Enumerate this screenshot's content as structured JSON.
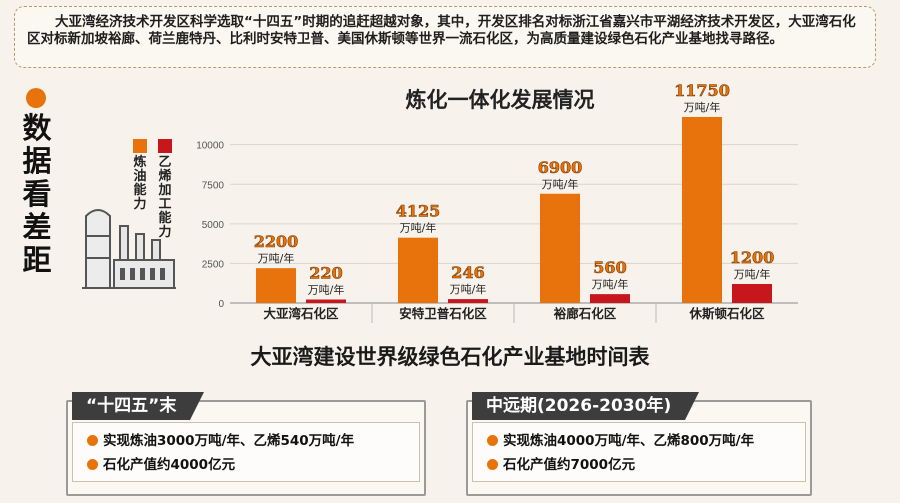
{
  "intro": {
    "text": "大亚湾经济技术开发区科学选取“十四五”时期的追赶超越对象，其中，开发区排名对标浙江省嘉兴市平湖经济技术开发区，大亚湾石化区对标新加坡裕廊、荷兰鹿特丹、比利时安特卫普、美国休斯顿等世界一流石化区，为高质量建设绿色石化产业基地找寻路径。"
  },
  "sidebar": {
    "title": "数据看差距",
    "legend": [
      {
        "label": "炼油能力",
        "color": "#e8730c"
      },
      {
        "label": "乙烯加工能力",
        "color": "#c8161d"
      }
    ]
  },
  "chart_data": {
    "type": "bar",
    "title": "炼化一体化发展情况",
    "categories": [
      "大亚湾石化区",
      "安特卫普石化区",
      "裕廊石化区",
      "休斯顿石化区"
    ],
    "series": [
      {
        "name": "炼油能力",
        "color": "#e8730c",
        "values": [
          2200,
          4125,
          6900,
          11750
        ],
        "labels": [
          "2200",
          "4125",
          "6900",
          "11750"
        ]
      },
      {
        "name": "乙烯加工能力",
        "color": "#c8161d",
        "values": [
          220,
          246,
          560,
          1200
        ],
        "labels": [
          "220",
          "246",
          "560",
          "1200"
        ]
      }
    ],
    "unit_label": "万吨/年",
    "yticks": [
      "0",
      "2500",
      "5000",
      "7500",
      "10000"
    ],
    "ylim": [
      0,
      12000
    ],
    "grid": true
  },
  "timeline": {
    "title": "大亚湾建设世界级绿色石化产业基地时间表",
    "panels": [
      {
        "tab": "“十四五”末",
        "items": [
          "实现炼油3000万吨/年、乙烯540万吨/年",
          "石化产值约4000亿元"
        ]
      },
      {
        "tab": "中远期(2026-2030年)",
        "items": [
          "实现炼油4000万吨/年、乙烯800万吨/年",
          "石化产值约7000亿元"
        ]
      }
    ]
  }
}
